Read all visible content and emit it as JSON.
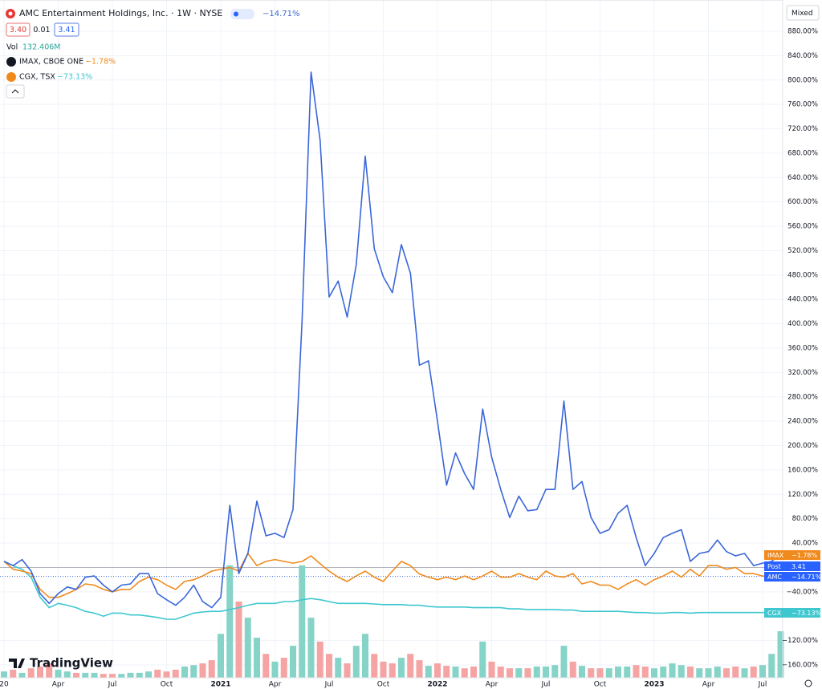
{
  "chart_data": {
    "type": "line",
    "header": {
      "title": "AMC Entertainment Holdings, Inc. · 1W · NYSE",
      "change": {
        "value": -14.71,
        "label": "−14.71%"
      }
    },
    "quote": {
      "bid": {
        "value": 3.4,
        "label": "3.40"
      },
      "spread": 0.01,
      "ask": 3.41,
      "post": {
        "label": "Post",
        "value": 3.41
      }
    },
    "scale_mode": "Mixed",
    "brand": "TradingView",
    "categories": [
      "20",
      null,
      null,
      null,
      null,
      null,
      "Apr",
      null,
      null,
      null,
      null,
      null,
      "Jul",
      null,
      null,
      null,
      null,
      null,
      "Oct",
      null,
      null,
      null,
      null,
      null,
      "2021",
      null,
      null,
      null,
      null,
      null,
      "Apr",
      null,
      null,
      null,
      null,
      null,
      "Jul",
      null,
      null,
      null,
      null,
      null,
      "Oct",
      null,
      null,
      null,
      null,
      null,
      "2022",
      null,
      null,
      null,
      null,
      null,
      "Apr",
      null,
      null,
      null,
      null,
      null,
      "Jul",
      null,
      null,
      null,
      null,
      null,
      "Oct",
      null,
      null,
      null,
      null,
      null,
      "2023",
      null,
      null,
      null,
      null,
      null,
      "Apr",
      null,
      null,
      null,
      null,
      null,
      "Jul",
      null,
      null
    ],
    "series": [
      {
        "name": "AMC",
        "legend": "AMC Entertainment Holdings, Inc. · 1W · NYSE",
        "change": {
          "value": -14.71,
          "label": "−14.71%"
        },
        "color": "#3a66d8",
        "values": [
          10,
          3,
          13,
          -6,
          -43,
          -59,
          -43,
          -32,
          -36,
          -16,
          -14,
          -29,
          -40,
          -29,
          -27,
          -10,
          -10,
          -43,
          -53,
          -62,
          -49,
          -29,
          -56,
          -66,
          -49,
          102,
          -10,
          23,
          109,
          52,
          56,
          49,
          95,
          405,
          813,
          701,
          444,
          470,
          411,
          497,
          675,
          523,
          477,
          451,
          530,
          483,
          332,
          339,
          240,
          135,
          188,
          154,
          128,
          260,
          181,
          128,
          82,
          117,
          93,
          95,
          128,
          128,
          273,
          128,
          141,
          82,
          56,
          62,
          89,
          102,
          49,
          3,
          23,
          49,
          56,
          62,
          10,
          23,
          26,
          45,
          26,
          19,
          23,
          3,
          7,
          10,
          23
        ]
      },
      {
        "name": "IMAX",
        "legend": "IMAX, CBOE ONE",
        "change": {
          "value": -1.78,
          "label": "−1.78%"
        },
        "color": "#f08a1c",
        "values": [
          10,
          -3,
          -6,
          -10,
          -36,
          -49,
          -49,
          -43,
          -36,
          -27,
          -29,
          -36,
          -40,
          -36,
          -36,
          -23,
          -16,
          -20,
          -29,
          -36,
          -23,
          -20,
          -14,
          -6,
          -3,
          0,
          -6,
          23,
          3,
          10,
          13,
          10,
          7,
          10,
          19,
          6,
          -6,
          -16,
          -23,
          -14,
          -6,
          -16,
          -23,
          -6,
          10,
          3,
          -11,
          -16,
          -20,
          -16,
          -20,
          -14,
          -20,
          -14,
          -6,
          -16,
          -16,
          -10,
          -16,
          -20,
          -6,
          -14,
          -16,
          -10,
          -27,
          -23,
          -29,
          -29,
          -36,
          -27,
          -20,
          -29,
          -20,
          -14,
          -6,
          -16,
          -3,
          -14,
          3,
          3,
          -3,
          0,
          -10,
          -10,
          -14,
          -16,
          -14
        ]
      },
      {
        "name": "CGX",
        "legend": "CGX, TSX",
        "change": {
          "value": -73.13,
          "label": "−73.13%"
        },
        "color": "#3fc7cf",
        "values": [
          10,
          3,
          -3,
          -16,
          -49,
          -66,
          -59,
          -62,
          -66,
          -72,
          -75,
          -80,
          -75,
          -75,
          -78,
          -78,
          -80,
          -82,
          -85,
          -85,
          -80,
          -75,
          -73,
          -72,
          -72,
          -69,
          -66,
          -62,
          -59,
          -59,
          -59,
          -56,
          -56,
          -53,
          -51,
          -53,
          -56,
          -59,
          -59,
          -59,
          -59,
          -60,
          -61,
          -61,
          -61,
          -62,
          -62,
          -64,
          -65,
          -65,
          -65,
          -65,
          -66,
          -66,
          -66,
          -66,
          -68,
          -68,
          -69,
          -69,
          -69,
          -69,
          -70,
          -70,
          -72,
          -72,
          -72,
          -72,
          -72,
          -73,
          -74,
          -74,
          -75,
          -75,
          -74,
          -74,
          -75,
          -74,
          -74,
          -74,
          -74,
          -74,
          -74,
          -74,
          -74,
          -73,
          -73
        ]
      }
    ],
    "volume": {
      "label": "Vol",
      "last": {
        "value": 132.406,
        "label": "132.406M"
      },
      "up_color": "#86d3c8",
      "down_color": "#f5a3a3",
      "values": [
        18,
        23,
        14,
        27,
        32,
        41,
        23,
        18,
        14,
        14,
        14,
        11,
        11,
        11,
        14,
        14,
        18,
        23,
        18,
        23,
        32,
        36,
        41,
        50,
        125,
        320,
        217,
        171,
        114,
        68,
        46,
        57,
        91,
        320,
        171,
        103,
        68,
        57,
        41,
        91,
        125,
        68,
        46,
        41,
        57,
        68,
        50,
        34,
        41,
        34,
        32,
        27,
        32,
        103,
        46,
        32,
        27,
        27,
        27,
        32,
        32,
        36,
        91,
        46,
        34,
        27,
        27,
        27,
        32,
        32,
        36,
        32,
        27,
        32,
        41,
        36,
        32,
        27,
        27,
        32,
        27,
        32,
        27,
        32,
        36,
        68,
        132.406
      ]
    },
    "ylim": [
      -180,
      925
    ],
    "yticks": [
      {
        "value": 880,
        "label": "880.00%"
      },
      {
        "value": 840,
        "label": "840.00%"
      },
      {
        "value": 800,
        "label": "800.00%"
      },
      {
        "value": 760,
        "label": "760.00%"
      },
      {
        "value": 720,
        "label": "720.00%"
      },
      {
        "value": 680,
        "label": "680.00%"
      },
      {
        "value": 640,
        "label": "640.00%"
      },
      {
        "value": 600,
        "label": "600.00%"
      },
      {
        "value": 560,
        "label": "560.00%"
      },
      {
        "value": 520,
        "label": "520.00%"
      },
      {
        "value": 480,
        "label": "480.00%"
      },
      {
        "value": 440,
        "label": "440.00%"
      },
      {
        "value": 400,
        "label": "400.00%"
      },
      {
        "value": 360,
        "label": "360.00%"
      },
      {
        "value": 320,
        "label": "320.00%"
      },
      {
        "value": 280,
        "label": "280.00%"
      },
      {
        "value": 240,
        "label": "240.00%"
      },
      {
        "value": 200,
        "label": "200.00%"
      },
      {
        "value": 160,
        "label": "160.00%"
      },
      {
        "value": 120,
        "label": "120.00%"
      },
      {
        "value": 80,
        "label": "80.00%"
      },
      {
        "value": 40,
        "label": "40.00%"
      },
      {
        "value": -40,
        "label": "−40.00%"
      },
      {
        "value": -120,
        "label": "−120.00%"
      },
      {
        "value": -160,
        "label": "−160.00%"
      }
    ],
    "grid": true
  }
}
